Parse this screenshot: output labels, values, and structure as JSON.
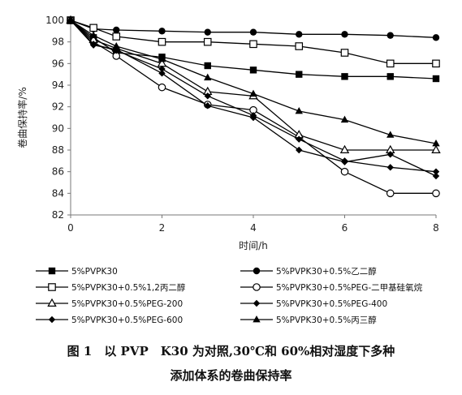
{
  "chart_data": {
    "type": "line",
    "xlabel": "时间/h",
    "ylabel": "卷曲保持率/%",
    "xlim": [
      0,
      8
    ],
    "ylim": [
      82,
      100
    ],
    "xticks": [
      "0",
      "2",
      "4",
      "6",
      "8"
    ],
    "yticks": [
      "82",
      "84",
      "86",
      "88",
      "90",
      "92",
      "94",
      "96",
      "98",
      "100"
    ],
    "grid": false,
    "legend_position": "bottom",
    "series": [
      {
        "name": "5%PVPK30",
        "marker": "square-filled",
        "x": [
          0,
          0.5,
          1,
          2,
          3,
          4,
          5,
          6,
          7,
          8
        ],
        "y": [
          100,
          98.4,
          97.0,
          96.6,
          95.8,
          95.4,
          95.0,
          94.8,
          94.8,
          94.6
        ]
      },
      {
        "name": "5%PVPK30+0.5%乙二醇",
        "marker": "circle-filled",
        "x": [
          0,
          0.5,
          1,
          2,
          3,
          4,
          5,
          6,
          7,
          8
        ],
        "y": [
          100,
          99.2,
          99.1,
          99.0,
          98.9,
          98.9,
          98.7,
          98.7,
          98.6,
          98.4
        ]
      },
      {
        "name": "5%PVPK30+0.5%1,2丙二醇",
        "marker": "square-open",
        "x": [
          0,
          0.5,
          1,
          2,
          3,
          4,
          5,
          6,
          7,
          8
        ],
        "y": [
          100,
          99.3,
          98.5,
          98.0,
          98.0,
          97.8,
          97.6,
          97.0,
          96.0,
          96.0
        ]
      },
      {
        "name": "5%PVPK30+0.5%PEG-二甲基硅氧烷",
        "marker": "circle-open",
        "x": [
          0,
          0.5,
          1,
          2,
          3,
          4,
          5,
          6,
          7,
          8
        ],
        "y": [
          100,
          98.0,
          96.7,
          93.8,
          92.2,
          91.7,
          89.2,
          86.0,
          84.0,
          84.0
        ]
      },
      {
        "name": "5%PVPK30+0.5%PEG-200",
        "marker": "triangle-open",
        "x": [
          0,
          0.5,
          1,
          2,
          3,
          4,
          5,
          6,
          7,
          8
        ],
        "y": [
          100,
          98.2,
          97.4,
          96.0,
          93.4,
          93.0,
          89.4,
          88.0,
          88.0,
          88.0
        ]
      },
      {
        "name": "5%PVPK30+0.5%PEG-400",
        "marker": "diamond-filled",
        "x": [
          0,
          0.5,
          1,
          2,
          3,
          4,
          5,
          6,
          7,
          8
        ],
        "y": [
          100,
          97.8,
          97.2,
          95.5,
          93.0,
          91.2,
          89.0,
          87.0,
          86.4,
          86.0
        ]
      },
      {
        "name": "5%PVPK30+0.5%PEG-600",
        "marker": "diamond-filled",
        "x": [
          0,
          0.5,
          1,
          2,
          3,
          4,
          5,
          6,
          7,
          8
        ],
        "y": [
          100,
          97.7,
          97.3,
          95.1,
          92.1,
          91.0,
          88.0,
          86.9,
          87.6,
          85.6
        ]
      },
      {
        "name": "5%PVPK30+0.5%丙三醇",
        "marker": "triangle-filled",
        "x": [
          0,
          0.5,
          1,
          2,
          3,
          4,
          5,
          6,
          7,
          8
        ],
        "y": [
          100,
          98.6,
          97.6,
          96.4,
          94.7,
          93.2,
          91.6,
          90.8,
          89.4,
          88.6
        ]
      }
    ]
  },
  "caption": {
    "line1": "图 1　以 PVP　K30 为对照,30℃和 60%相对湿度下多种",
    "line2": "添加体系的卷曲保持率"
  }
}
